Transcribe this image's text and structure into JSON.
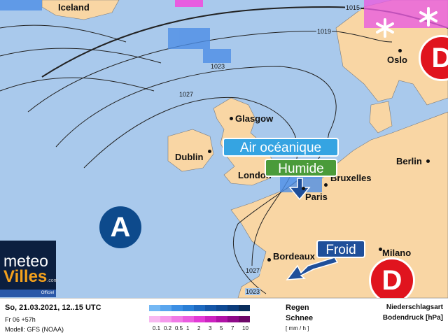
{
  "cities": [
    {
      "name": "Iceland"
    },
    {
      "name": "Oslo"
    },
    {
      "name": "Glasgow"
    },
    {
      "name": "Dublin"
    },
    {
      "name": "London"
    },
    {
      "name": "Bruxelles"
    },
    {
      "name": "Berlin"
    },
    {
      "name": "Paris"
    },
    {
      "name": "Bordeaux"
    },
    {
      "name": "Milano"
    }
  ],
  "isobars": [
    "1015",
    "1019",
    "1023",
    "1027",
    "1027",
    "1023"
  ],
  "callouts": {
    "air": "Air océanique",
    "humide": "Humide",
    "froid": "Froid"
  },
  "pressure_centers": {
    "high": "A",
    "low1": "D",
    "low2": "D"
  },
  "logo": {
    "line1": "meteo",
    "line2": "Villes",
    "suffix": ".com",
    "badge": "Officiel"
  },
  "footer": {
    "date": "So, 21.03.2021, 12..15 UTC",
    "run": "Fr 06 +57h",
    "model": "Modell: GFS (NOAA)",
    "rain": "Regen",
    "snow": "Schnee",
    "unit": "[ mm / h ]",
    "type_label": "Niederschlagsart",
    "pressure_label": "Bodendruck [hPa]",
    "ticks": [
      "0.1",
      "0.2",
      "0.5",
      "1",
      "2",
      "3",
      "5",
      "7",
      "10"
    ],
    "rain_colors": [
      "#74b8f4",
      "#5aa6ee",
      "#3c8fe4",
      "#2a7fd6",
      "#1e6ac0",
      "#1557a8",
      "#0f4a94",
      "#0c3d7c",
      "#0a2e5c"
    ],
    "snow_colors": [
      "#f8b8f0",
      "#f59aec",
      "#f07ae6",
      "#ea5ce0",
      "#e23ad6",
      "#cc22c0",
      "#b012a6",
      "#8e0a88",
      "#6e0868"
    ]
  },
  "colors": {
    "sea": "#a9c9ec",
    "land": "#f9d6a4",
    "high": "#0d4a8c",
    "low": "#e0141e"
  }
}
